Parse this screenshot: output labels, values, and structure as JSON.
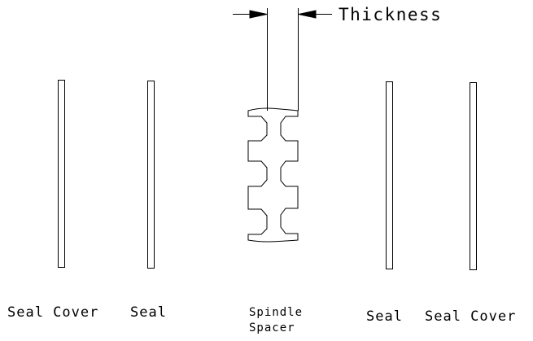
{
  "labels": {
    "seal_cover_left": "Seal Cover",
    "seal_left": "Seal",
    "spindle_spacer_line1": "Spindle",
    "spindle_spacer_line2": "Spacer",
    "seal_right": "Seal",
    "seal_cover_right": "Seal Cover",
    "dimension": "Thickness"
  }
}
